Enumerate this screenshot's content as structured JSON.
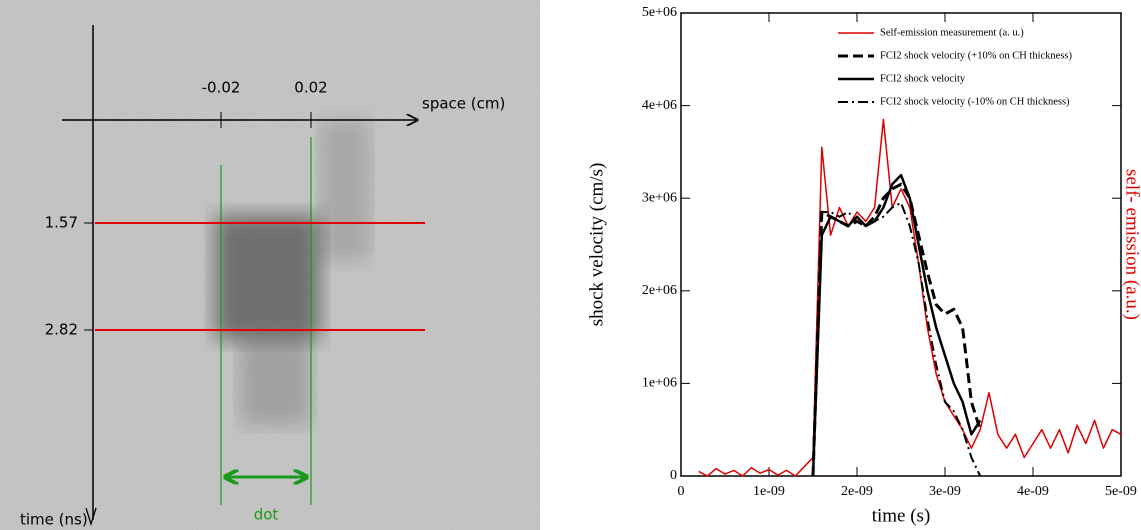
{
  "streak_image": {
    "x_axis_label": "space (cm)",
    "y_axis_label": "time (ns)",
    "x_markers": [
      "-0.02",
      "0.02"
    ],
    "y_markers": [
      "1.57",
      "2.82"
    ],
    "annotation": "dot"
  },
  "chart_data": {
    "type": "line",
    "x_label": "time (s)",
    "y_label": "shock velocity (cm/s)",
    "y2_label": "self- emission (a.u.)",
    "y2_label_color": "#e00000",
    "legend": "upper right",
    "xlim": [
      0,
      5e-09
    ],
    "xticks": [
      0,
      {
        "value": 1e-09,
        "label": "1e-09"
      },
      {
        "value": 2e-09,
        "label": "2e-09"
      },
      {
        "value": 3e-09,
        "label": "3e-09"
      },
      {
        "value": 4e-09,
        "label": "4e-09"
      },
      {
        "value": 5e-09,
        "label": "5e-09"
      }
    ],
    "ylim": [
      0,
      5000000
    ],
    "yticks": [
      0,
      {
        "value": 1000000,
        "label": "1e+06"
      },
      {
        "value": 2000000,
        "label": "2e+06"
      },
      {
        "value": 3000000,
        "label": "3e+06"
      },
      {
        "value": 4000000,
        "label": "4e+06"
      },
      {
        "value": 5000000,
        "label": "5e+06"
      }
    ],
    "x": [
      2e-10,
      3e-10,
      4e-10,
      5e-10,
      6e-10,
      7e-10,
      8e-10,
      9e-10,
      1e-09,
      1.1e-09,
      1.2e-09,
      1.3e-09,
      1.4e-09,
      1.5e-09,
      1.6e-09,
      1.7e-09,
      1.8e-09,
      1.9e-09,
      2e-09,
      2.1e-09,
      2.2e-09,
      2.3e-09,
      2.4e-09,
      2.5e-09,
      2.6e-09,
      2.7e-09,
      2.8e-09,
      2.9e-09,
      3e-09,
      3.1e-09,
      3.2e-09,
      3.3e-09,
      3.4e-09,
      3.5e-09,
      3.6e-09,
      3.7e-09,
      3.8e-09,
      3.9e-09,
      4e-09,
      4.1e-09,
      4.2e-09,
      4.3e-09,
      4.4e-09,
      4.5e-09,
      4.6e-09,
      4.7e-09,
      4.8e-09,
      4.9e-09,
      5e-09
    ],
    "series": [
      {
        "name": "Self-emission measurement (a. u.)",
        "color": "#e00000",
        "dash": "solid",
        "width": 1.5,
        "values": [
          50000,
          0,
          80000,
          20000,
          60000,
          0,
          90000,
          30000,
          70000,
          10000,
          60000,
          0,
          100000,
          200000,
          3550000,
          2600000,
          2900000,
          2700000,
          2850000,
          2750000,
          2900000,
          3850000,
          2900000,
          3100000,
          2900000,
          2300000,
          1600000,
          1100000,
          800000,
          650000,
          500000,
          300000,
          500000,
          900000,
          450000,
          300000,
          450000,
          200000,
          350000,
          500000,
          300000,
          500000,
          250000,
          550000,
          350000,
          600000,
          300000,
          500000,
          450000
        ]
      },
      {
        "name": "FCI2 shock velocity (+10% on CH thickness)",
        "color": "#000000",
        "dash": "dashed",
        "width": 3,
        "values": [
          null,
          null,
          null,
          null,
          null,
          null,
          null,
          null,
          null,
          null,
          null,
          null,
          null,
          0,
          2850000,
          2800000,
          2750000,
          2700000,
          2750000,
          2700000,
          2800000,
          3000000,
          3100000,
          3150000,
          3000000,
          2600000,
          2200000,
          1850000,
          1750000,
          1800000,
          1600000,
          800000,
          500000,
          null,
          null,
          null,
          null,
          null,
          null,
          null,
          null,
          null,
          null,
          null,
          null,
          null,
          null,
          null,
          null
        ]
      },
      {
        "name": "FCI2 shock velocity",
        "color": "#000000",
        "dash": "solid",
        "width": 2.5,
        "values": [
          null,
          null,
          null,
          null,
          null,
          null,
          null,
          null,
          null,
          null,
          null,
          null,
          null,
          0,
          2600000,
          2800000,
          2750000,
          2700000,
          2800000,
          2700000,
          2750000,
          2900000,
          3150000,
          3250000,
          3000000,
          2500000,
          2000000,
          1600000,
          1300000,
          1000000,
          800000,
          450000,
          600000,
          null,
          null,
          null,
          null,
          null,
          null,
          null,
          null,
          null,
          null,
          null,
          null,
          null,
          null,
          null,
          null
        ]
      },
      {
        "name": "FCI2 shock velocity  (-10% on CH thickness)",
        "color": "#000000",
        "dash": "dashdot",
        "width": 2,
        "values": [
          null,
          null,
          null,
          null,
          null,
          null,
          null,
          null,
          null,
          null,
          null,
          null,
          null,
          0,
          2850000,
          2850000,
          2800000,
          2850000,
          2750000,
          2700000,
          2750000,
          2800000,
          2900000,
          2950000,
          2700000,
          2300000,
          1700000,
          1200000,
          800000,
          700000,
          500000,
          200000,
          0,
          null,
          null,
          null,
          null,
          null,
          null,
          null,
          null,
          null,
          null,
          null,
          null,
          null,
          null,
          null,
          null
        ]
      }
    ]
  }
}
